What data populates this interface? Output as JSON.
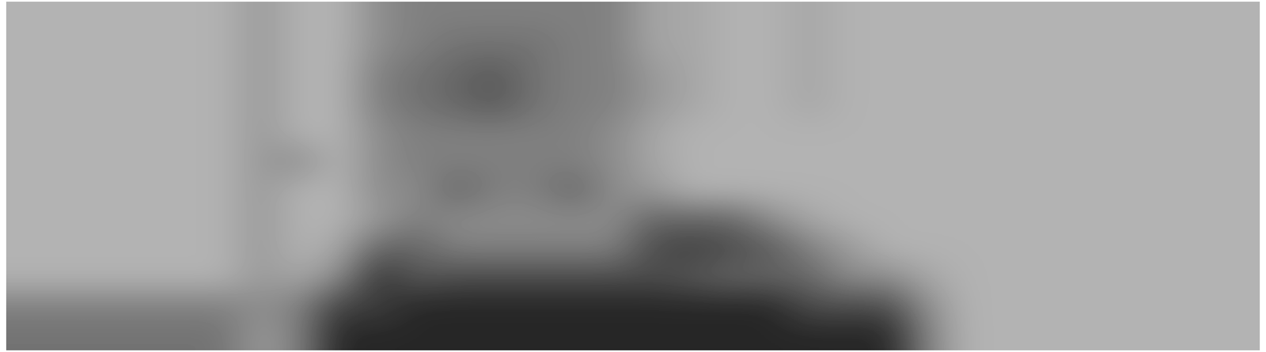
{
  "chart_data": {
    "type": "heatmap",
    "tick_labels": false,
    "color_range": [
      0,
      1
    ],
    "cells": [
      [
        0.3,
        0.3,
        0.3,
        0.3,
        0.3,
        0.3,
        0.4,
        0.3,
        0.3,
        0.45,
        0.5,
        0.5,
        0.5,
        0.5,
        0.5,
        0.5,
        0.35,
        0.35,
        0.3,
        0.3,
        0.35,
        0.3,
        0.3,
        0.3,
        0.3,
        0.3,
        0.3,
        0.3,
        0.3,
        0.3,
        0.3,
        0.3
      ],
      [
        0.3,
        0.3,
        0.3,
        0.3,
        0.3,
        0.3,
        0.4,
        0.3,
        0.3,
        0.45,
        0.5,
        0.55,
        0.55,
        0.55,
        0.5,
        0.5,
        0.35,
        0.35,
        0.3,
        0.3,
        0.35,
        0.3,
        0.3,
        0.3,
        0.3,
        0.3,
        0.3,
        0.3,
        0.3,
        0.3,
        0.3,
        0.3
      ],
      [
        0.3,
        0.3,
        0.3,
        0.3,
        0.3,
        0.3,
        0.4,
        0.3,
        0.3,
        0.5,
        0.55,
        0.6,
        0.65,
        0.55,
        0.5,
        0.5,
        0.4,
        0.35,
        0.3,
        0.3,
        0.35,
        0.3,
        0.3,
        0.3,
        0.3,
        0.3,
        0.3,
        0.3,
        0.3,
        0.3,
        0.3,
        0.3
      ],
      [
        0.3,
        0.3,
        0.3,
        0.3,
        0.3,
        0.3,
        0.4,
        0.3,
        0.3,
        0.5,
        0.55,
        0.6,
        0.65,
        0.55,
        0.5,
        0.5,
        0.4,
        0.35,
        0.3,
        0.3,
        0.35,
        0.3,
        0.3,
        0.3,
        0.3,
        0.3,
        0.3,
        0.3,
        0.3,
        0.3,
        0.3,
        0.3
      ],
      [
        0.3,
        0.3,
        0.3,
        0.3,
        0.3,
        0.3,
        0.4,
        0.3,
        0.3,
        0.45,
        0.5,
        0.5,
        0.5,
        0.5,
        0.5,
        0.45,
        0.35,
        0.3,
        0.3,
        0.3,
        0.3,
        0.3,
        0.3,
        0.3,
        0.3,
        0.3,
        0.3,
        0.3,
        0.3,
        0.3,
        0.3,
        0.3
      ],
      [
        0.3,
        0.3,
        0.3,
        0.3,
        0.3,
        0.3,
        0.4,
        0.45,
        0.3,
        0.45,
        0.5,
        0.5,
        0.5,
        0.5,
        0.5,
        0.45,
        0.35,
        0.3,
        0.3,
        0.3,
        0.3,
        0.3,
        0.3,
        0.3,
        0.3,
        0.3,
        0.3,
        0.3,
        0.3,
        0.3,
        0.3,
        0.3
      ],
      [
        0.3,
        0.3,
        0.3,
        0.3,
        0.3,
        0.3,
        0.4,
        0.3,
        0.3,
        0.45,
        0.45,
        0.6,
        0.5,
        0.5,
        0.6,
        0.45,
        0.4,
        0.3,
        0.3,
        0.3,
        0.3,
        0.3,
        0.3,
        0.3,
        0.3,
        0.3,
        0.3,
        0.3,
        0.3,
        0.3,
        0.3,
        0.3
      ],
      [
        0.3,
        0.3,
        0.3,
        0.3,
        0.3,
        0.3,
        0.4,
        0.3,
        0.3,
        0.4,
        0.5,
        0.45,
        0.45,
        0.45,
        0.45,
        0.45,
        0.6,
        0.6,
        0.6,
        0.45,
        0.35,
        0.3,
        0.3,
        0.3,
        0.3,
        0.3,
        0.3,
        0.3,
        0.3,
        0.3,
        0.3,
        0.3
      ],
      [
        0.3,
        0.3,
        0.3,
        0.3,
        0.3,
        0.3,
        0.4,
        0.3,
        0.35,
        0.6,
        0.6,
        0.5,
        0.5,
        0.5,
        0.5,
        0.5,
        0.7,
        0.75,
        0.7,
        0.65,
        0.5,
        0.4,
        0.3,
        0.3,
        0.3,
        0.3,
        0.3,
        0.3,
        0.3,
        0.3,
        0.3,
        0.3
      ],
      [
        0.3,
        0.3,
        0.3,
        0.3,
        0.3,
        0.3,
        0.4,
        0.35,
        0.45,
        0.8,
        0.65,
        0.7,
        0.7,
        0.7,
        0.7,
        0.7,
        0.7,
        0.65,
        0.6,
        0.6,
        0.6,
        0.45,
        0.45,
        0.35,
        0.3,
        0.3,
        0.3,
        0.3,
        0.3,
        0.3,
        0.3,
        0.3
      ],
      [
        0.5,
        0.5,
        0.5,
        0.5,
        0.5,
        0.5,
        0.45,
        0.5,
        0.75,
        0.75,
        0.85,
        0.85,
        0.85,
        0.85,
        0.85,
        0.85,
        0.85,
        0.85,
        0.85,
        0.85,
        0.7,
        0.7,
        0.7,
        0.45,
        0.3,
        0.3,
        0.3,
        0.3,
        0.3,
        0.3,
        0.3,
        0.3
      ],
      [
        0.55,
        0.55,
        0.55,
        0.55,
        0.55,
        0.55,
        0.4,
        0.5,
        0.85,
        0.85,
        0.85,
        0.85,
        0.85,
        0.85,
        0.85,
        0.85,
        0.85,
        0.85,
        0.85,
        0.85,
        0.85,
        0.85,
        0.85,
        0.5,
        0.3,
        0.3,
        0.3,
        0.3,
        0.3,
        0.3,
        0.3,
        0.3
      ]
    ]
  }
}
